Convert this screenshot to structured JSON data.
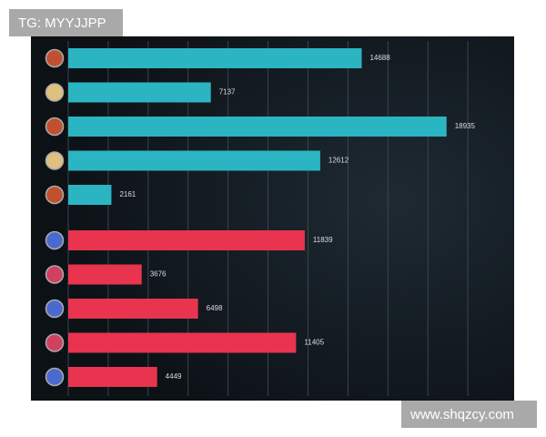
{
  "chart_data": {
    "type": "barh",
    "series": [
      {
        "color": "#2bb5c3",
        "values": [
          14688,
          7137,
          18935,
          12612,
          2161
        ]
      },
      {
        "color": "#e8344e",
        "values": [
          11839,
          3676,
          6498,
          11405,
          4449
        ]
      }
    ],
    "xlim": [
      0,
      22000
    ],
    "xticks": [
      0,
      2000,
      4000,
      6000,
      8000,
      10000,
      12000,
      14000,
      16000,
      18000,
      20000
    ],
    "grid": true
  },
  "watermarks": {
    "top_left": "TG: MYYJJPP",
    "bottom_right": "www.shqzcy.com"
  }
}
